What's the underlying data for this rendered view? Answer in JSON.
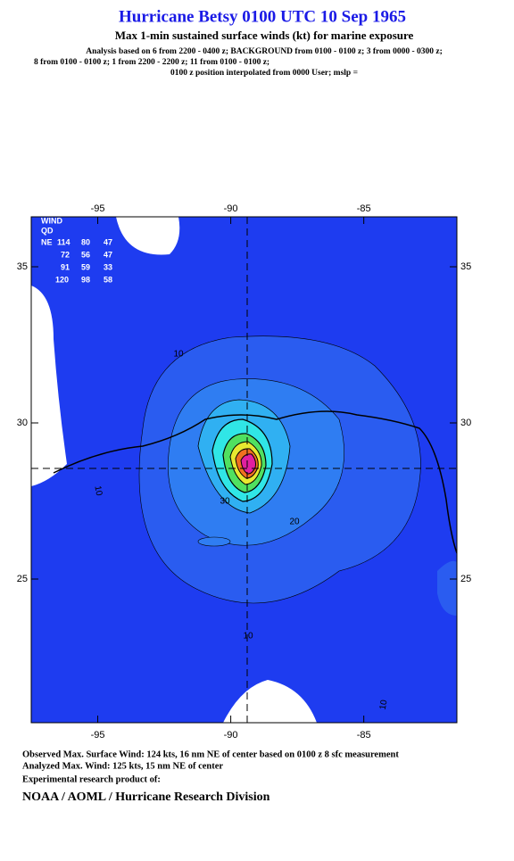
{
  "header": {
    "title": "Hurricane Betsy 0100 UTC 10 Sep 1965",
    "subtitle": "Max 1-min sustained surface winds (kt) for marine exposure",
    "analysis": [
      "Analysis based on  6 from 2200 - 0400 z;  BACKGROUND from 0100 - 0100 z;  3 from 0000 - 0300 z;",
      "8 from 0100 - 0100 z;  1 from 2200 - 2200 z;  11 from 0100 - 0100 z;",
      "0100 z position interpolated from 0000 User; mslp ="
    ]
  },
  "map": {
    "xlim": [
      -97.5,
      -81.5
    ],
    "ylim": [
      20.4,
      36.6
    ],
    "xticks": [
      -95,
      -90,
      -85
    ],
    "yticks": [
      25,
      30,
      35
    ],
    "contour_labels": [
      10,
      10,
      20,
      30,
      10,
      10
    ]
  },
  "wind_table": {
    "header": [
      "WIND",
      "QD"
    ],
    "rows": [
      [
        "NE",
        "114",
        "80",
        "47"
      ],
      [
        "72",
        "56",
        "47"
      ],
      [
        "91",
        "59",
        "33"
      ],
      [
        "120",
        "98",
        "58"
      ]
    ]
  },
  "footer": {
    "lines": [
      "Observed Max. Surface Wind: 124 kts, 16 nm NE of center based on 0100 z 8 sfc measurement",
      "Analyzed Max. Wind: 125 kts, 15 nm NE of center",
      "Experimental research product of:"
    ],
    "org": "NOAA / AOML / Hurricane Research Division"
  }
}
